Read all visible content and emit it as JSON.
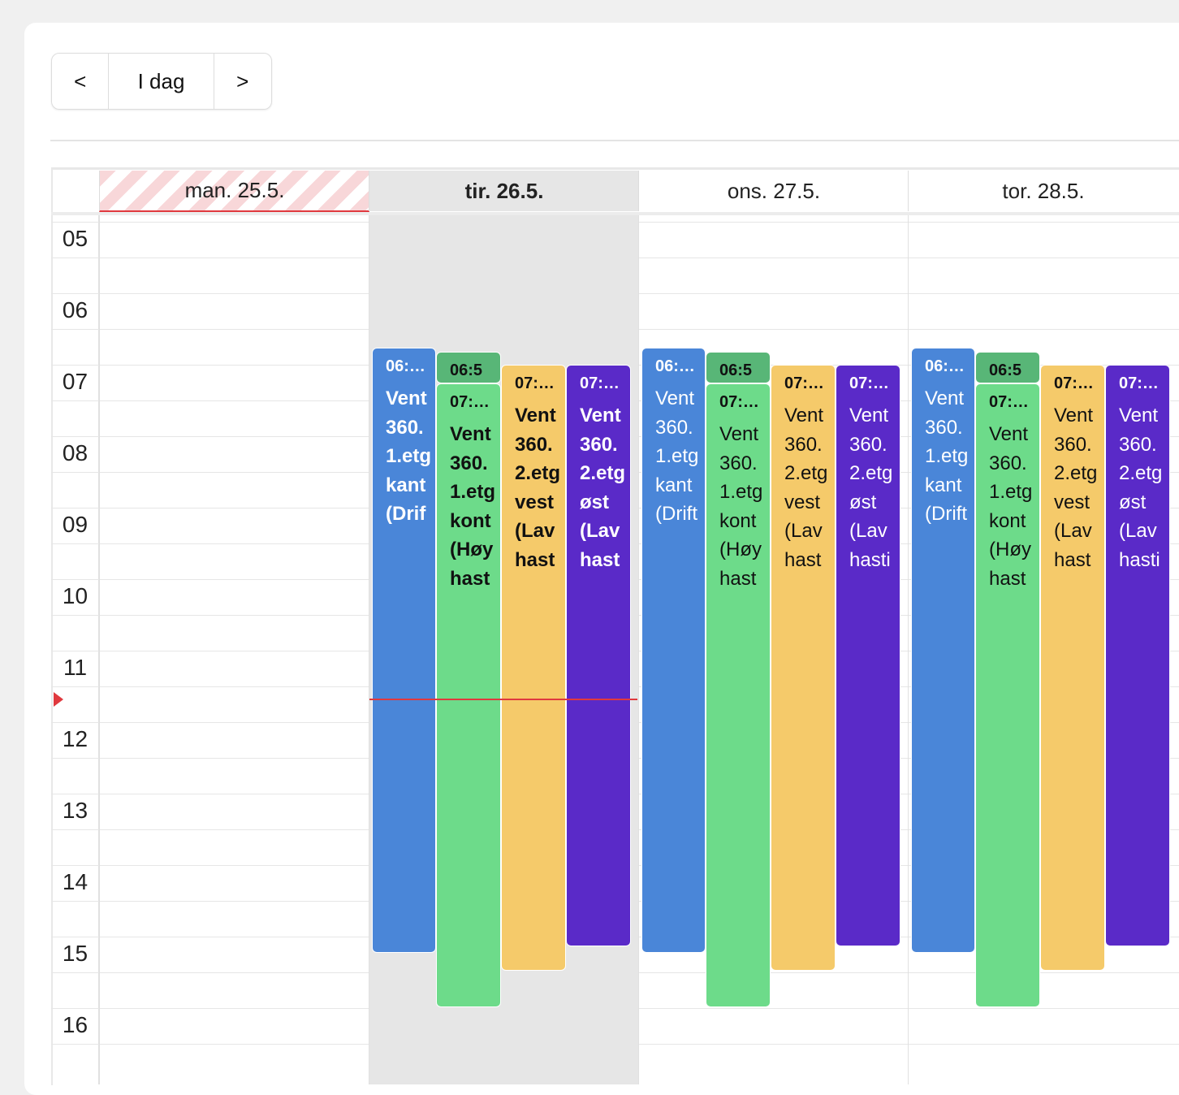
{
  "toolbar": {
    "prev": "<",
    "today": "I dag",
    "next": ">"
  },
  "hours": [
    "05",
    "06",
    "07",
    "08",
    "09",
    "10",
    "11",
    "12",
    "13",
    "14",
    "15",
    "16"
  ],
  "days": [
    {
      "header": "man. 25.5.",
      "events": []
    },
    {
      "header": "tir. 26.5.",
      "events": [
        {
          "time": "06:…",
          "lines": [
            "Vent",
            "360.",
            "1.etg",
            "kant",
            "(Drif"
          ]
        },
        {
          "time": "06:5",
          "lines": []
        },
        {
          "time": "07:…",
          "lines": [
            "Vent",
            "360.",
            "1.etg",
            "kont",
            "(Høy",
            "hast"
          ]
        },
        {
          "time": "07:…",
          "lines": [
            "Vent",
            "360.",
            "2.etg",
            "vest",
            "(Lav",
            "hast"
          ]
        },
        {
          "time": "07:…",
          "lines": [
            "Vent",
            "360.",
            "2.etg",
            "øst",
            "(Lav",
            "hast"
          ]
        }
      ]
    },
    {
      "header": "ons. 27.5.",
      "events": [
        {
          "time": "06:…",
          "lines": [
            "Vent",
            "360.",
            "1.etg",
            "kant",
            "(Drift"
          ]
        },
        {
          "time": "06:5",
          "lines": []
        },
        {
          "time": "07:…",
          "lines": [
            "Vent",
            "360.",
            "1.etg",
            "kont",
            "(Høy",
            "hast"
          ]
        },
        {
          "time": "07:…",
          "lines": [
            "Vent",
            "360.",
            "2.etg",
            "vest",
            "(Lav",
            "hast"
          ]
        },
        {
          "time": "07:…",
          "lines": [
            "Vent",
            "360.",
            "2.etg",
            "øst",
            "(Lav",
            "hasti"
          ]
        }
      ]
    },
    {
      "header": "tor. 28.5.",
      "events": [
        {
          "time": "06:…",
          "lines": [
            "Vent",
            "360.",
            "1.etg",
            "kant",
            "(Drift"
          ]
        },
        {
          "time": "06:5",
          "lines": []
        },
        {
          "time": "07:…",
          "lines": [
            "Vent",
            "360.",
            "1.etg",
            "kont",
            "(Høy",
            "hast"
          ]
        },
        {
          "time": "07:…",
          "lines": [
            "Vent",
            "360.",
            "2.etg",
            "vest",
            "(Lav",
            "hast"
          ]
        },
        {
          "time": "07:…",
          "lines": [
            "Vent",
            "360.",
            "2.etg",
            "øst",
            "(Lav",
            "hasti"
          ]
        }
      ]
    }
  ]
}
